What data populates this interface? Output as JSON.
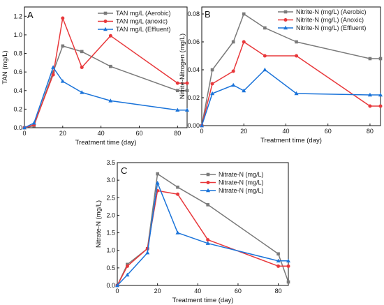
{
  "chart_data": [
    {
      "panel_label": "A",
      "type": "line",
      "xlabel": "Treatment time (day)",
      "ylabel": "TAN (mg/L)",
      "xlim": [
        0,
        85
      ],
      "ylim": [
        0,
        1.3
      ],
      "xticks": [
        0,
        20,
        40,
        60,
        80
      ],
      "yticks": [
        0,
        0.2,
        0.4,
        0.6,
        0.8,
        1.0,
        1.2
      ],
      "ytick_labels": [
        "0.0",
        "0.2",
        "0.4",
        "0.6",
        "0.8",
        "1.0",
        "1.2"
      ],
      "legend_position": "top-right",
      "grid": false,
      "series": [
        {
          "name": "TAN mg/L (Aerobic)",
          "color": "#7a7a7a",
          "marker": "square",
          "x": [
            0,
            5,
            15,
            20,
            30,
            45,
            80,
            85
          ],
          "y": [
            0,
            0.02,
            0.6,
            0.88,
            0.82,
            0.66,
            0.4,
            0.4
          ]
        },
        {
          "name": "TAN mg/L (anoxic)",
          "color": "#e8383b",
          "marker": "circle",
          "x": [
            0,
            5,
            15,
            20,
            30,
            45,
            80,
            85
          ],
          "y": [
            0,
            0.03,
            0.57,
            1.18,
            0.65,
            0.99,
            0.48,
            0.48
          ]
        },
        {
          "name": "TAN mg/L (Effluent)",
          "color": "#1a73d9",
          "marker": "triangle",
          "x": [
            0,
            5,
            15,
            20,
            30,
            45,
            80,
            85
          ],
          "y": [
            0,
            0.05,
            0.65,
            0.5,
            0.38,
            0.29,
            0.19,
            0.19
          ]
        }
      ]
    },
    {
      "panel_label": "B",
      "type": "line",
      "xlabel": "Treatment time (day)",
      "ylabel": "Nitrite-Nitrogen (mg/L)",
      "xlim": [
        0,
        85
      ],
      "ylim": [
        0,
        0.085
      ],
      "xticks": [
        0,
        20,
        40,
        60,
        80
      ],
      "yticks": [
        0,
        0.02,
        0.04,
        0.06,
        0.08
      ],
      "ytick_labels": [
        "0.00",
        "0.02",
        "0.04",
        "0.06",
        "0.08"
      ],
      "legend_position": "top-right",
      "grid": false,
      "series": [
        {
          "name": "Nitrite-N (mg/L) (Aerobic)",
          "color": "#7a7a7a",
          "marker": "square",
          "x": [
            0,
            5,
            15,
            20,
            30,
            45,
            80,
            85
          ],
          "y": [
            0,
            0.04,
            0.06,
            0.08,
            0.07,
            0.06,
            0.048,
            0.048
          ]
        },
        {
          "name": "Nitrite-N (mg/L) (Anoxic)",
          "color": "#e8383b",
          "marker": "circle",
          "x": [
            0,
            5,
            15,
            20,
            30,
            45,
            80,
            85
          ],
          "y": [
            0,
            0.03,
            0.039,
            0.06,
            0.05,
            0.05,
            0.014,
            0.014
          ]
        },
        {
          "name": "Nitrite-N (mg/L) (Effluent)",
          "color": "#1a73d9",
          "marker": "triangle",
          "x": [
            0,
            5,
            15,
            20,
            30,
            45,
            80,
            85
          ],
          "y": [
            0,
            0.023,
            0.029,
            0.025,
            0.04,
            0.023,
            0.022,
            0.022
          ]
        }
      ]
    },
    {
      "panel_label": "C",
      "type": "line",
      "xlabel": "Treatment time (day)",
      "ylabel": "Nitrate-N (mg/L)",
      "xlim": [
        0,
        85
      ],
      "ylim": [
        0,
        3.5
      ],
      "xticks": [
        0,
        20,
        40,
        60,
        80
      ],
      "yticks": [
        0,
        0.5,
        1.0,
        1.5,
        2.0,
        2.5,
        3.0,
        3.5
      ],
      "ytick_labels": [
        "0.0",
        "0.5",
        "1.0",
        "1.5",
        "2.0",
        "2.5",
        "3.0",
        "3.5"
      ],
      "legend_position": "top-right",
      "grid": false,
      "series": [
        {
          "name": "Nitrate-N (mg/L)",
          "color": "#7a7a7a",
          "marker": "square",
          "x": [
            0,
            5,
            15,
            20,
            30,
            45,
            80,
            85
          ],
          "y": [
            0,
            0.6,
            1.05,
            3.18,
            2.8,
            2.3,
            0.9,
            0.1
          ]
        },
        {
          "name": "Nitrate-N (mg/L)",
          "color": "#e8383b",
          "marker": "circle",
          "x": [
            0,
            5,
            15,
            20,
            30,
            45,
            80,
            85
          ],
          "y": [
            0,
            0.55,
            1.05,
            2.7,
            2.6,
            1.3,
            0.55,
            0.55
          ]
        },
        {
          "name": "Nitrate-N (mg/L)",
          "color": "#1a73d9",
          "marker": "triangle",
          "x": [
            0,
            5,
            15,
            20,
            30,
            45,
            80,
            85
          ],
          "y": [
            0,
            0.3,
            0.93,
            2.92,
            1.5,
            1.2,
            0.7,
            0.7
          ]
        }
      ]
    }
  ]
}
